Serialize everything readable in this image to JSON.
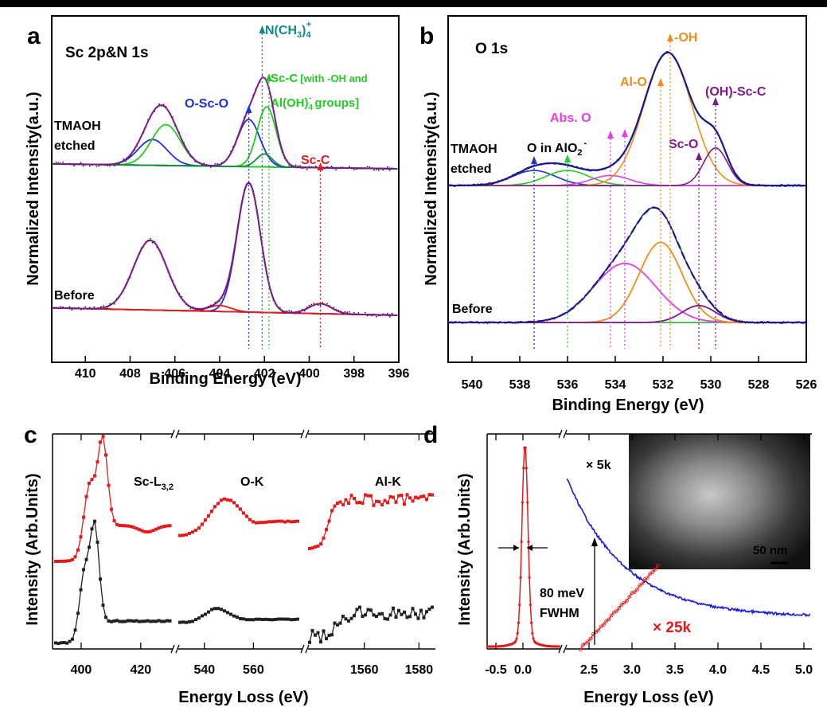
{
  "panels": {
    "a": {
      "letter": "a",
      "title": "Sc 2p&N 1s"
    },
    "b": {
      "letter": "b",
      "title": "O 1s"
    },
    "c": {
      "letter": "c"
    },
    "d": {
      "letter": "d"
    }
  },
  "chart_data": [
    {
      "id": "a",
      "type": "line",
      "title": "Sc 2p&N 1s",
      "xlabel": "Binding Energy (eV)",
      "ylabel": "Normalized Intensity(a.u.)",
      "xlim": [
        411.5,
        396
      ],
      "x_ticks": [
        410,
        408,
        406,
        404,
        402,
        400,
        398,
        396
      ],
      "series_labels": [
        "TMAOH",
        "etched",
        "Before"
      ],
      "annotations": {
        "n": "N(CH",
        "n_sub": "3",
        "n_close": ")",
        "n_sub2": "4",
        "n_sup": "+",
        "scc1": "Sc-C",
        "scc2": "[with -OH and",
        "scc3": "Al(OH)",
        "scc3_sub": "4",
        "scc3_sup": "-",
        "scc3_end": "groups]",
        "oso": "O-Sc-O",
        "scc_red": "Sc-C"
      },
      "marker_positions": {
        "O-Sc-O": 402.7,
        "N(CH3)4+": 402.1,
        "Sc-C [with -OH and Al(OH)4- groups]": 401.8,
        "Sc-C": 399.5
      },
      "series": [
        {
          "name": "Before envelope",
          "peaks": [
            [
              407.1,
              0.35,
              0.75
            ],
            [
              402.7,
              0.65,
              0.52
            ],
            [
              404.0,
              0.03,
              0.5
            ],
            [
              399.5,
              0.05,
              0.5
            ]
          ]
        },
        {
          "name": "TMAOH etched envelope",
          "peaks": [
            [
              407.0,
              0.12,
              0.65
            ],
            [
              406.4,
              0.19,
              0.65
            ],
            [
              402.7,
              0.22,
              0.5
            ],
            [
              401.9,
              0.28,
              0.42
            ],
            [
              402.0,
              0.06,
              0.35
            ]
          ]
        }
      ]
    },
    {
      "id": "b",
      "type": "line",
      "title": "O 1s",
      "xlabel": "Binding Energy (eV)",
      "ylabel": "Normalized Intensity(a.u.)",
      "xlim": [
        541,
        526
      ],
      "x_ticks": [
        540,
        538,
        536,
        534,
        532,
        530,
        528,
        526
      ],
      "series_labels": [
        "TMAOH",
        "etched",
        "Before"
      ],
      "annotations": {
        "oh": "-OH",
        "alo": "Al-O",
        "abs": "Abs. O",
        "ohsc": "(OH)-Sc-C",
        "sco": "Sc-O",
        "oin": "O in AlO",
        "oin_sub": "2",
        "oin_sup": "-"
      },
      "marker_positions": {
        "O in AlO2-": 537.4,
        "green": 536.0,
        "Abs. O": 533.6,
        "Al-O": 532.1,
        "-OH": 531.7,
        "Sc-O": 530.5,
        "(OH)-Sc-C": 529.8
      },
      "series": [
        {
          "name": "TMAOH etched envelope",
          "peaks": [
            [
              537.4,
              0.06,
              0.9
            ],
            [
              536.0,
              0.06,
              0.9
            ],
            [
              534.2,
              0.04,
              0.8
            ],
            [
              531.8,
              0.53,
              1.0
            ],
            [
              529.8,
              0.15,
              0.5
            ]
          ]
        },
        {
          "name": "Before envelope",
          "peaks": [
            [
              533.6,
              0.28,
              1.3
            ],
            [
              532.1,
              0.38,
              0.9
            ],
            [
              530.5,
              0.08,
              0.7
            ]
          ]
        }
      ]
    },
    {
      "id": "c",
      "type": "line",
      "xlabel": "Energy Loss (eV)",
      "ylabel": "Intensity (Arb.Units)",
      "segments": [
        {
          "label": "Sc-L",
          "label_sub": "3,2",
          "x_ticks": [
            "400",
            "420"
          ],
          "xlim": [
            392,
            431
          ]
        },
        {
          "label": "O-K",
          "x_ticks": [
            "540",
            "560"
          ],
          "xlim": [
            530,
            580
          ]
        },
        {
          "label": "Al-K",
          "x_ticks": [
            "1560",
            "1580"
          ],
          "xlim": [
            1540,
            1586
          ]
        }
      ],
      "series": [
        {
          "name": "top (red)",
          "color": "#e41a1c"
        },
        {
          "name": "bottom (black)",
          "color": "#222222"
        }
      ]
    },
    {
      "id": "d",
      "type": "line",
      "xlabel": "Energy Loss (eV)",
      "ylabel": "Intensity (Arb.Units)",
      "x_ticks": [
        "-0.5",
        "0.0",
        "2.5",
        "3.0",
        "3.5",
        "4.0",
        "4.5",
        "5.0"
      ],
      "annotations": {
        "fwhm_value": "80 meV",
        "fwhm_label": "FWHM",
        "mag1": "× 5k",
        "mag2": "× 25k",
        "scale": "50 nm"
      },
      "fwhm_eV": 0.08,
      "series": [
        {
          "name": "ZLP",
          "center": 0.0,
          "color": "#e41a1c"
        },
        {
          "name": "× 5k",
          "color": "#1a1adc",
          "x_range": [
            2.0,
            5.2
          ]
        },
        {
          "name": "× 25k",
          "color": "#e41a1c",
          "x_range": [
            2.5,
            3.3
          ]
        }
      ]
    }
  ]
}
